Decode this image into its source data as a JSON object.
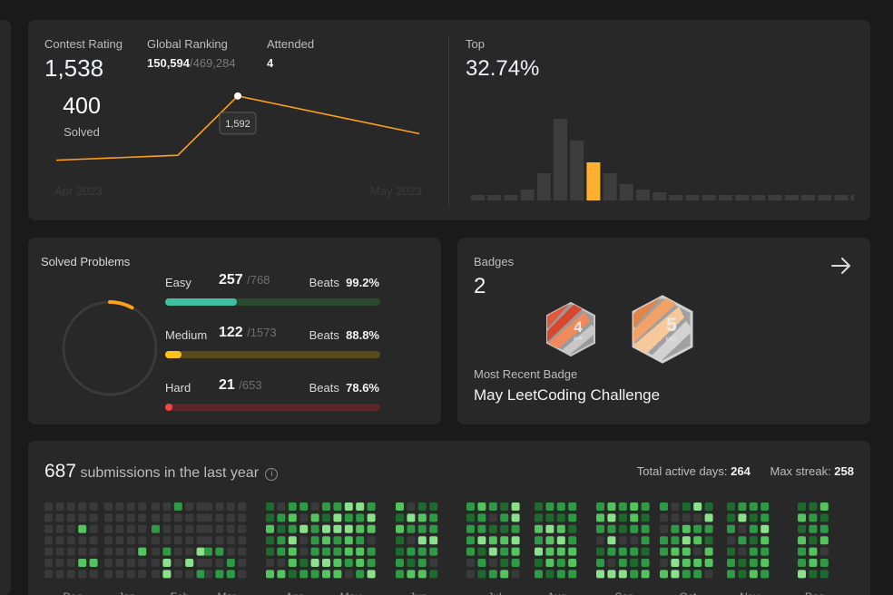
{
  "contest": {
    "rating_label": "Contest Rating",
    "rating_value": "1,538",
    "ranking_label": "Global Ranking",
    "ranking_value": "150,594",
    "ranking_total": "/469,284",
    "attended_label": "Attended",
    "attended_value": "4",
    "tooltip_value": "1,592",
    "x_start_label": "Apr 2023",
    "x_end_label": "May 2023",
    "top_label": "Top",
    "top_value": "32.74%",
    "line_color": "#ffa116"
  },
  "chart_data": [
    {
      "type": "line",
      "title": "",
      "x": [
        "Apr 2023",
        "",
        "",
        "May 2023"
      ],
      "values": [
        1500,
        1507,
        1592,
        1538
      ],
      "ylim": [
        1480,
        1610
      ],
      "xlabel": "",
      "ylabel": "",
      "highlight": {
        "index": 2,
        "label": "1,592"
      },
      "grid": false
    },
    {
      "type": "bar",
      "title": "",
      "values": [
        1,
        1,
        1,
        2,
        5,
        15,
        11,
        7,
        5,
        3,
        2,
        1.5,
        1,
        1,
        1,
        1,
        1,
        1,
        1,
        1,
        1,
        1,
        1,
        1
      ],
      "highlight_index": 7,
      "ylim": [
        0,
        16
      ],
      "xlabel": "",
      "ylabel": ""
    }
  ],
  "solved": {
    "title": "Solved Problems",
    "total": "400",
    "total_label": "Solved",
    "ring_fraction": 0.08,
    "difficulties": [
      {
        "name": "Easy",
        "count": "257",
        "total": "/768",
        "beats_label": "Beats",
        "beats": "99.2%",
        "fraction": 0.335,
        "color": "#2cbb5d",
        "track": "#2a4a2f",
        "fill": "#3fbfa0"
      },
      {
        "name": "Medium",
        "count": "122",
        "total": "/1573",
        "beats_label": "Beats",
        "beats": "88.8%",
        "fraction": 0.078,
        "color": "#ffb700",
        "track": "#5a4a1a",
        "fill": "#ffc01e"
      },
      {
        "name": "Hard",
        "count": "21",
        "total": "/653",
        "beats_label": "Beats",
        "beats": "78.6%",
        "fraction": 0.032,
        "color": "#ef4743",
        "track": "#5a2828",
        "fill": "#ef4743"
      }
    ]
  },
  "badges": {
    "label": "Badges",
    "count": "2",
    "recent_label": "Most Recent Badge",
    "recent_name": "May LeetCoding Challenge",
    "items": [
      {
        "icon": "april-badge-icon",
        "number": "4",
        "month": "APR"
      },
      {
        "icon": "may-badge-icon",
        "number": "5",
        "month": "MAY"
      }
    ]
  },
  "submissions": {
    "count": "687",
    "title_rest": " submissions in the last year",
    "active_label": "Total active days: ",
    "active_value": "264",
    "streak_label": "Max streak: ",
    "streak_value": "258",
    "months": [
      "Dec",
      "Jan",
      "Feb",
      "Mar",
      "Apr",
      "May",
      "Jun",
      "Jul",
      "Aug",
      "Sep",
      "Oct",
      "Nov",
      "Dec"
    ],
    "colors": {
      "empty": "#3a3a3a",
      "l1": "#1e6a2e",
      "l2": "#2e9a45",
      "l3": "#54c45e",
      "l4": "#8be08b"
    }
  }
}
